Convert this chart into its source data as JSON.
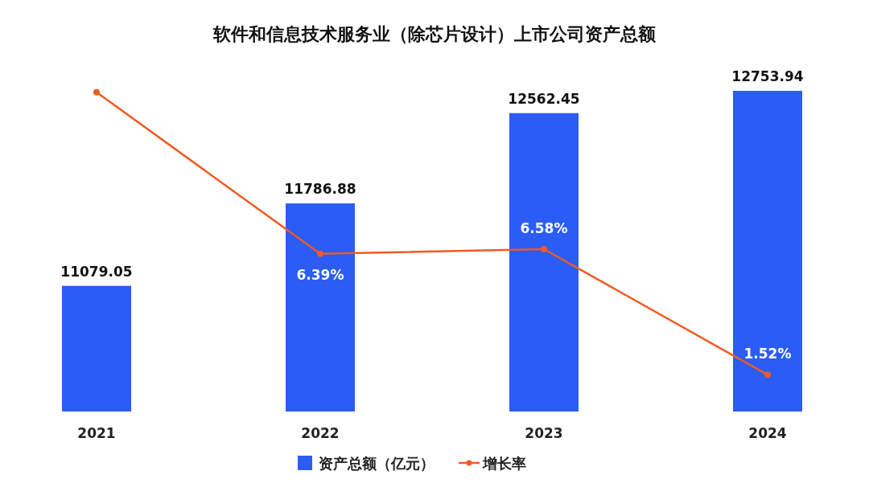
{
  "chart_data": {
    "type": "bar",
    "title": "软件和信息技术服务业（除芯片设计）上市公司资产总额",
    "categories": [
      "2021",
      "2022",
      "2023",
      "2024"
    ],
    "series": [
      {
        "name": "资产总额（亿元）",
        "color": "#2b5cf6",
        "values": [
          11079.05,
          11786.88,
          12562.45,
          12753.94
        ],
        "value_labels": [
          "11079.05",
          "11786.88",
          "12562.45",
          "12753.94"
        ]
      },
      {
        "name": "增长率",
        "type": "line",
        "axis": "y2",
        "color": "#f05a23",
        "values": [
          12.9,
          6.39,
          6.58,
          1.52
        ],
        "value_labels": [
          null,
          "6.39%",
          "6.58%",
          "1.52%"
        ]
      }
    ],
    "ylim": [
      10000,
      12753.94
    ],
    "marker": "circle",
    "line_style": "solid",
    "legend": "bottom"
  }
}
